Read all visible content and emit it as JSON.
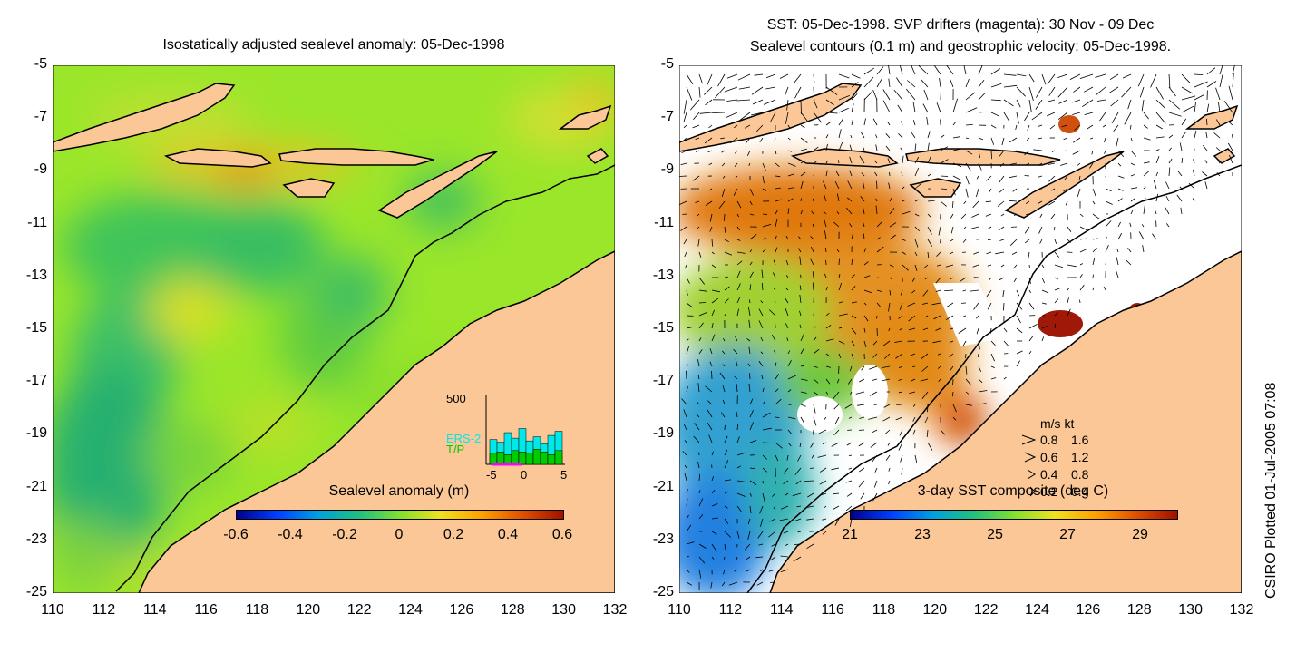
{
  "left_panel": {
    "title": "Isostatically adjusted sealevel anomaly: 05-Dec-1998",
    "colorbar": {
      "label": "Sealevel anomaly (m)",
      "ticks": [
        "-0.6",
        "-0.4",
        "-0.2",
        "0",
        "0.2",
        "0.4",
        "0.6"
      ],
      "range": [
        -0.6,
        0.6
      ]
    },
    "inset": {
      "ymax_label": "500",
      "series": [
        {
          "name": "ERS-2",
          "color": "#00e8e8"
        },
        {
          "name": "T/P",
          "color": "#00cc00"
        }
      ],
      "x_ticks": [
        "-5",
        "0",
        "5"
      ],
      "ers2_counts": [
        180,
        160,
        230,
        190,
        260,
        170,
        200,
        150,
        210,
        240
      ],
      "tp_counts": [
        80,
        90,
        70,
        100,
        90,
        80,
        110,
        90,
        70,
        100
      ]
    }
  },
  "right_panel": {
    "title_line1": "SST: 05-Dec-1998. SVP drifters (magenta): 30 Nov - 09 Dec",
    "title_line2": "Sealevel contours (0.1 m) and geostrophic velocity: 05-Dec-1998.",
    "colorbar": {
      "label": "3-day SST composite (deg C)",
      "ticks": [
        "21",
        "23",
        "25",
        "27",
        "29"
      ],
      "range": [
        21,
        30
      ]
    },
    "velocity_legend": {
      "header": "m/s  kt",
      "rows": [
        {
          "ms": "0.8",
          "kt": "1.6"
        },
        {
          "ms": "0.6",
          "kt": "1.2"
        },
        {
          "ms": "0.4",
          "kt": "0.8"
        },
        {
          "ms": "0.2",
          "kt": "0.4"
        }
      ]
    }
  },
  "axes": {
    "lon_ticks": [
      "110",
      "112",
      "114",
      "116",
      "118",
      "120",
      "122",
      "124",
      "126",
      "128",
      "130",
      "132"
    ],
    "lat_ticks": [
      "-5",
      "-7",
      "-9",
      "-11",
      "-13",
      "-15",
      "-17",
      "-19",
      "-21",
      "-23",
      "-25"
    ],
    "lon_range": [
      110,
      132
    ],
    "lat_range": [
      -25,
      -5
    ]
  },
  "colors": {
    "land": "#fbc797",
    "coast": "#000000",
    "sla_background": "#9ae62a",
    "sst_missing": "#ffffff"
  },
  "credit": "CSIRO Plotted 01-Jul-2005 07:08"
}
